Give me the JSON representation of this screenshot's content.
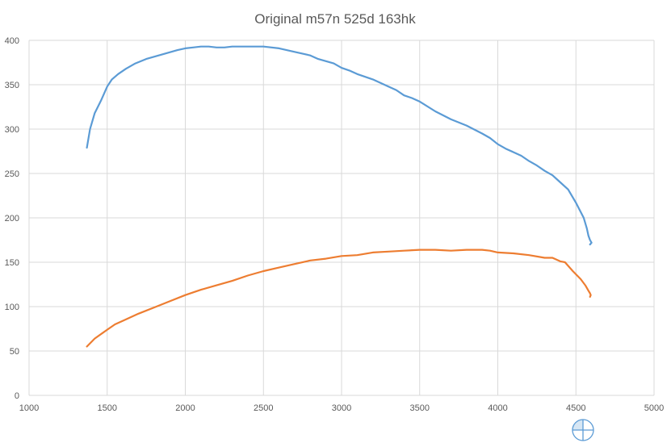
{
  "chart_data": {
    "type": "line",
    "title": "Original m57n 525d 163hk",
    "xlim": [
      1000,
      5000
    ],
    "ylim": [
      0,
      400
    ],
    "xticks": [
      1000,
      1500,
      2000,
      2500,
      3000,
      3500,
      4000,
      4500,
      5000
    ],
    "yticks": [
      0,
      50,
      100,
      150,
      200,
      250,
      300,
      350,
      400
    ],
    "grid": true,
    "legend": "none",
    "series": [
      {
        "color": "#5b9bd5",
        "x": [
          1370,
          1390,
          1420,
          1460,
          1500,
          1530,
          1570,
          1620,
          1680,
          1750,
          1850,
          1950,
          2000,
          2050,
          2100,
          2150,
          2200,
          2250,
          2300,
          2400,
          2500,
          2600,
          2700,
          2800,
          2850,
          2950,
          3000,
          3050,
          3100,
          3200,
          3300,
          3350,
          3400,
          3450,
          3500,
          3600,
          3700,
          3800,
          3900,
          3950,
          4000,
          4050,
          4100,
          4150,
          4200,
          4250,
          4300,
          4350,
          4400,
          4450,
          4500,
          4550,
          4570,
          4580,
          4590,
          4600,
          4590
        ],
        "y": [
          279,
          300,
          318,
          332,
          348,
          356,
          362,
          368,
          374,
          379,
          384,
          389,
          391,
          392,
          393,
          393,
          392,
          392,
          393,
          393,
          393,
          391,
          387,
          383,
          379,
          374,
          369,
          366,
          362,
          356,
          348,
          344,
          338,
          335,
          331,
          320,
          311,
          304,
          295,
          290,
          283,
          278,
          274,
          270,
          264,
          259,
          253,
          248,
          240,
          232,
          217,
          200,
          188,
          180,
          175,
          172,
          170
        ]
      },
      {
        "color": "#ed7d31",
        "x": [
          1370,
          1420,
          1500,
          1550,
          1600,
          1700,
          1800,
          1900,
          2000,
          2100,
          2200,
          2300,
          2400,
          2500,
          2600,
          2700,
          2800,
          2900,
          3000,
          3100,
          3200,
          3300,
          3400,
          3500,
          3600,
          3700,
          3800,
          3900,
          3950,
          4000,
          4100,
          4200,
          4300,
          4350,
          4400,
          4430,
          4480,
          4530,
          4560,
          4580,
          4590,
          4595,
          4590
        ],
        "y": [
          55,
          64,
          74,
          80,
          84,
          92,
          99,
          106,
          113,
          119,
          124,
          129,
          135,
          140,
          144,
          148,
          152,
          154,
          157,
          158,
          161,
          162,
          163,
          164,
          164,
          163,
          164,
          164,
          163,
          161,
          160,
          158,
          155,
          155,
          151,
          150,
          140,
          131,
          124,
          118,
          115,
          113,
          111
        ]
      }
    ]
  }
}
